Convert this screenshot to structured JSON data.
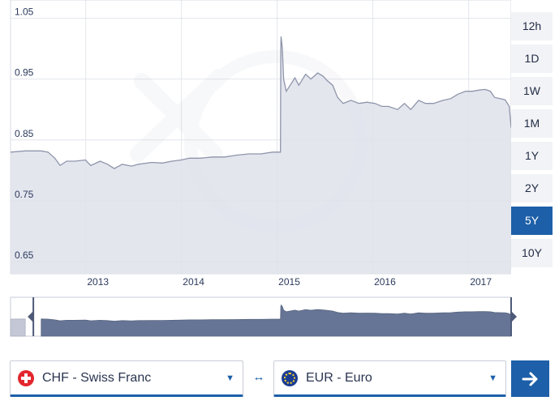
{
  "chart_data": {
    "type": "area",
    "series": [
      {
        "values": [
          [
            "2012-03-20",
            0.83
          ],
          [
            "2012-05-15",
            0.832
          ],
          [
            "2012-07-15",
            0.832
          ],
          [
            "2012-08-10",
            0.83
          ],
          [
            "2012-09-05",
            0.82
          ],
          [
            "2012-09-25",
            0.808
          ],
          [
            "2012-10-20",
            0.815
          ],
          [
            "2012-11-20",
            0.815
          ],
          [
            "2012-12-31",
            0.817
          ],
          [
            "2013-01-20",
            0.808
          ],
          [
            "2013-02-25",
            0.815
          ],
          [
            "2013-03-25",
            0.81
          ],
          [
            "2013-04-20",
            0.803
          ],
          [
            "2013-05-20",
            0.81
          ],
          [
            "2013-06-25",
            0.807
          ],
          [
            "2013-07-20",
            0.81
          ],
          [
            "2013-09-10",
            0.813
          ],
          [
            "2013-10-20",
            0.812
          ],
          [
            "2013-11-25",
            0.815
          ],
          [
            "2013-12-31",
            0.817
          ],
          [
            "2014-02-01",
            0.82
          ],
          [
            "2014-03-15",
            0.82
          ],
          [
            "2014-04-30",
            0.822
          ],
          [
            "2014-06-15",
            0.822
          ],
          [
            "2014-08-01",
            0.825
          ],
          [
            "2014-09-15",
            0.827
          ],
          [
            "2014-10-31",
            0.827
          ],
          [
            "2014-12-15",
            0.83
          ],
          [
            "2015-01-14",
            0.83
          ],
          [
            "2015-01-15",
            1.0
          ],
          [
            "2015-01-16",
            1.02
          ],
          [
            "2015-01-21",
            1.0
          ],
          [
            "2015-01-26",
            0.95
          ],
          [
            "2015-02-05",
            0.93
          ],
          [
            "2015-02-20",
            0.94
          ],
          [
            "2015-03-10",
            0.952
          ],
          [
            "2015-03-25",
            0.94
          ],
          [
            "2015-04-20",
            0.958
          ],
          [
            "2015-05-10",
            0.95
          ],
          [
            "2015-06-05",
            0.96
          ],
          [
            "2015-06-25",
            0.955
          ],
          [
            "2015-07-10",
            0.948
          ],
          [
            "2015-08-01",
            0.94
          ],
          [
            "2015-08-20",
            0.92
          ],
          [
            "2015-09-10",
            0.91
          ],
          [
            "2015-10-10",
            0.915
          ],
          [
            "2015-11-10",
            0.91
          ],
          [
            "2015-12-10",
            0.912
          ],
          [
            "2016-01-10",
            0.91
          ],
          [
            "2016-02-05",
            0.905
          ],
          [
            "2016-03-01",
            0.905
          ],
          [
            "2016-04-05",
            0.9
          ],
          [
            "2016-05-01",
            0.91
          ],
          [
            "2016-05-25",
            0.9
          ],
          [
            "2016-06-24",
            0.915
          ],
          [
            "2016-07-20",
            0.91
          ],
          [
            "2016-08-20",
            0.91
          ],
          [
            "2016-09-25",
            0.915
          ],
          [
            "2016-10-25",
            0.918
          ],
          [
            "2016-11-20",
            0.925
          ],
          [
            "2016-12-20",
            0.93
          ],
          [
            "2017-01-15",
            0.93
          ],
          [
            "2017-02-10",
            0.932
          ],
          [
            "2017-03-05",
            0.933
          ],
          [
            "2017-03-25",
            0.93
          ],
          [
            "2017-04-10",
            0.92
          ],
          [
            "2017-05-01",
            0.918
          ],
          [
            "2017-05-20",
            0.916
          ],
          [
            "2017-06-05",
            0.905
          ],
          [
            "2017-06-12",
            0.87
          ]
        ]
      }
    ],
    "yticks": [
      "1.05",
      "0.95",
      "0.85",
      "0.75",
      "0.65"
    ],
    "xticks": [
      "2013",
      "2014",
      "2015",
      "2016",
      "2017"
    ],
    "ylim": [
      0.63,
      1.08
    ],
    "xlim": [
      "2012-03-20",
      "2017-06-12"
    ],
    "grid": true,
    "xlabel": "",
    "ylabel": ""
  },
  "navigator": {
    "selected_range": [
      "2012-06-15",
      "2017-06-12"
    ]
  },
  "range_buttons": [
    {
      "label": "12h"
    },
    {
      "label": "1D"
    },
    {
      "label": "1W"
    },
    {
      "label": "1M"
    },
    {
      "label": "1Y"
    },
    {
      "label": "2Y"
    },
    {
      "label": "5Y",
      "active": true
    },
    {
      "label": "10Y"
    }
  ],
  "converter": {
    "from_currency": "CHF - Swiss Franc",
    "to_currency": "EUR - Euro",
    "swap_icon": "left-right-arrow-icon",
    "go_icon": "arrow-right-icon"
  },
  "colors": {
    "accent": "#1d5fa8",
    "area_fill": "#dfe2eb",
    "line": "#8e95aa",
    "navigator_selected": "#667596",
    "navigator_unselected": "#c4c8d6"
  }
}
